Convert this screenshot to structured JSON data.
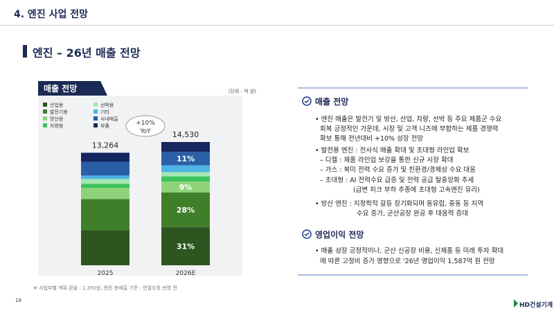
{
  "header": {
    "title": "4. 엔진 사업 전망",
    "section": "엔진 – 26년 매출 전망"
  },
  "chart_data": {
    "type": "stacked-bar",
    "title": "매출 전망",
    "unit": "(단위 : 억 원)",
    "categories": [
      "2025",
      "2026E"
    ],
    "series": [
      {
        "name": "산업용",
        "color": "#2d5520",
        "values": [
          4150,
          4504
        ],
        "value_labels": [
          null,
          "31%"
        ]
      },
      {
        "name": "발전기용",
        "color": "#3f7f2a",
        "values": [
          3662,
          4068
        ],
        "value_labels": [
          null,
          "28%"
        ]
      },
      {
        "name": "방산용",
        "color": "#8fd27a",
        "values": [
          1302,
          1308
        ],
        "value_labels": [
          null,
          "9%"
        ]
      },
      {
        "name": "차량용",
        "color": "#3cc25c",
        "values": [
          488,
          600
        ],
        "value_labels": [
          null,
          null
        ]
      },
      {
        "name": "선박용",
        "color": "#a6e6b0",
        "values": [
          570,
          500
        ],
        "value_labels": [
          null,
          null
        ]
      },
      {
        "name": "기타",
        "color": "#4eb4e6",
        "values": [
          407,
          800
        ],
        "value_labels": [
          null,
          null
        ]
      },
      {
        "name": "사내매출",
        "color": "#2a5ea6",
        "values": [
          1627,
          1598
        ],
        "value_labels": [
          null,
          "11%"
        ]
      },
      {
        "name": "부품",
        "color": "#16265e",
        "values": [
          1058,
          1152
        ],
        "value_labels": [
          null,
          null
        ]
      }
    ],
    "totals": [
      {
        "value": 13264,
        "label": "13,264"
      },
      {
        "value": 14530,
        "label": "14,530"
      }
    ],
    "annotation": [
      "+10%",
      "YoY"
    ]
  },
  "footnote": "※ 사업부별 계획 환율 : 1,350원, 엔진 총매출 기준 : 연결조정 반영 전",
  "page_number": "19",
  "logo": "HD건설기계",
  "sections": [
    {
      "heading": "매출 전망",
      "lines": [
        "• 엔진 매출은 발전기 및 방산, 산업, 차량, 선박 등 주요 제품군 수요",
        "회복 긍정적인 가운데, 시장 및 고객 니즈에 부합하는 제품 경쟁력",
        "확보 통해 전년대비 +10% 성장 전망",
        "• 발전용 엔진 : 전사식 매출 확대 및 초대형 라인업 확보",
        "– 디젤 : 제품 라인업 보강을 통한 신규 시장 확대",
        "– 가스 : 북미 전력 수요 증가 및 친환경/경제성 수요 대응",
        "– 초대형 : AI 전력수요 급증 및 전력 공급 탈중앙화 추세",
        "(급변 피크 부하 추종에 초대형 고속엔진 유리)",
        "• 방산 엔진 : 지정학적 갈등 장기화되며 동유럽, 중동 등 지역",
        "수요 증가, 군산공장 완공 후 대응력 증대"
      ]
    },
    {
      "heading": "영업이익 전망",
      "lines": [
        "• 매출 성장 긍정적이나, 군산 신공장 비용, 신제품 등 미래 투자 확대",
        "에 따른 고정비 증가 영향으로 '26년 영업이익 1,587억 원 전망"
      ]
    }
  ]
}
